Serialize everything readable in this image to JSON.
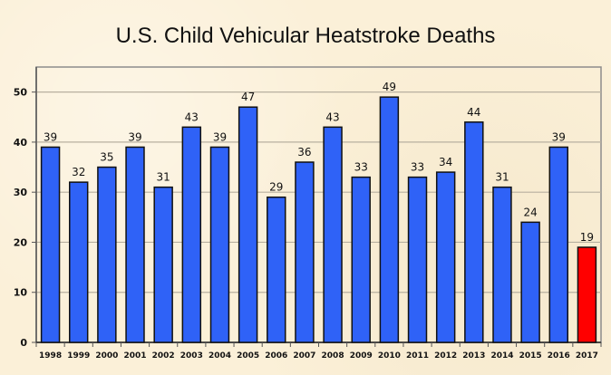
{
  "chart_data": {
    "type": "bar",
    "title": "U.S. Child Vehicular Heatstroke Deaths",
    "xlabel": "",
    "ylabel": "",
    "categories": [
      "1998",
      "1999",
      "2000",
      "2001",
      "2002",
      "2003",
      "2004",
      "2005",
      "2006",
      "2007",
      "2008",
      "2009",
      "2010",
      "2011",
      "2012",
      "2013",
      "2014",
      "2015",
      "2016",
      "2017"
    ],
    "values": [
      39,
      32,
      35,
      39,
      31,
      43,
      39,
      47,
      29,
      36,
      43,
      33,
      49,
      33,
      34,
      44,
      31,
      24,
      39,
      19
    ],
    "ylim": [
      0,
      55
    ],
    "yticks": [
      0,
      10,
      20,
      30,
      40,
      50
    ],
    "grid": true,
    "legend": "none",
    "data_labels": true,
    "colors": {
      "default": "#2f62f7",
      "highlight": "#ff0000",
      "highlight_category": "2017",
      "bar_edge": "#111111",
      "grid": "#b8b0a0"
    }
  }
}
